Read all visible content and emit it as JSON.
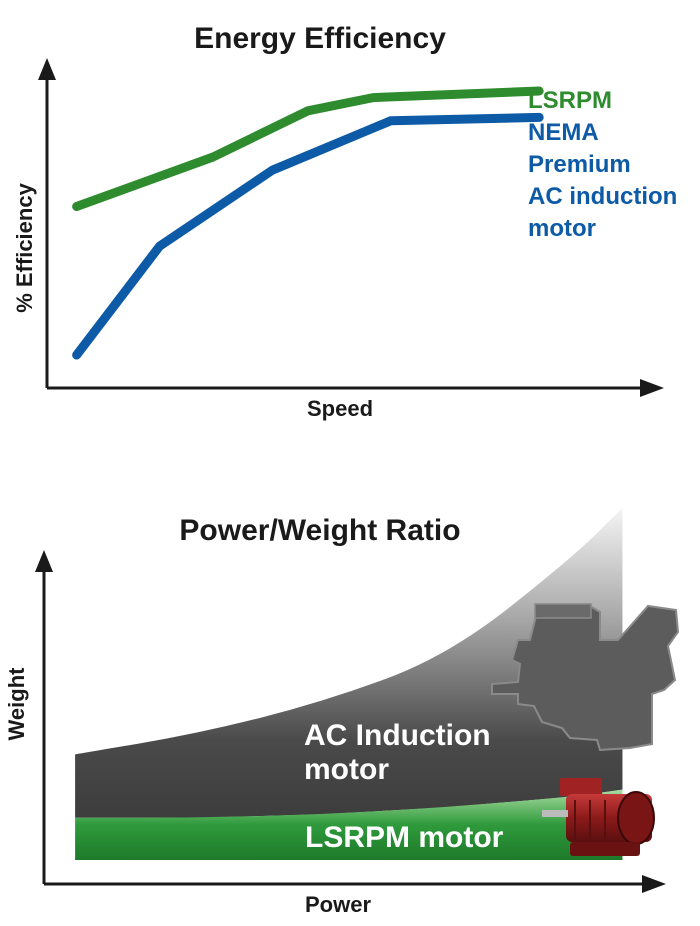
{
  "chart_data": [
    {
      "type": "line",
      "title": "Energy Efficiency",
      "xlabel": "Speed",
      "ylabel": "% Efficiency",
      "grid": false,
      "legend_position": "right",
      "series": [
        {
          "name": "LSRPM",
          "color": "#2e8b2e",
          "x": [
            0.05,
            0.28,
            0.44,
            0.55,
            0.83
          ],
          "y": [
            0.55,
            0.7,
            0.84,
            0.88,
            0.9
          ]
        },
        {
          "name": "NEMA Premium AC induction motor",
          "name_lines": [
            "NEMA",
            "Premium",
            "AC induction",
            "motor"
          ],
          "color": "#0d5aa6",
          "x": [
            0.05,
            0.19,
            0.38,
            0.58,
            0.83
          ],
          "y": [
            0.1,
            0.43,
            0.66,
            0.81,
            0.82
          ]
        }
      ]
    },
    {
      "type": "area",
      "title": "Power/Weight Ratio",
      "xlabel": "Power",
      "ylabel": "Weight",
      "grid": false,
      "series": [
        {
          "name": "AC Induction motor",
          "name_lines": [
            "AC Induction",
            "motor"
          ],
          "color": "#4a4a4a",
          "x": [
            0.05,
            0.25,
            0.45,
            0.65,
            0.85,
            0.93
          ],
          "y_top": [
            0.3,
            0.36,
            0.45,
            0.58,
            0.86,
            1.0
          ],
          "y_bottom": [
            0.12,
            0.12,
            0.13,
            0.15,
            0.18,
            0.2
          ]
        },
        {
          "name": "LSRPM motor",
          "color": "#2f9a3c",
          "x": [
            0.05,
            0.25,
            0.45,
            0.65,
            0.85,
            0.93
          ],
          "y_top": [
            0.12,
            0.12,
            0.13,
            0.15,
            0.18,
            0.2
          ],
          "y_bottom": [
            0.0,
            0.0,
            0.0,
            0.0,
            0.0,
            0.0
          ]
        }
      ],
      "images": [
        {
          "name": "ac-induction-motor-silhouette",
          "color": "#555555"
        },
        {
          "name": "lsrpm-red-motor",
          "color": "#8b1a1a"
        }
      ]
    }
  ]
}
